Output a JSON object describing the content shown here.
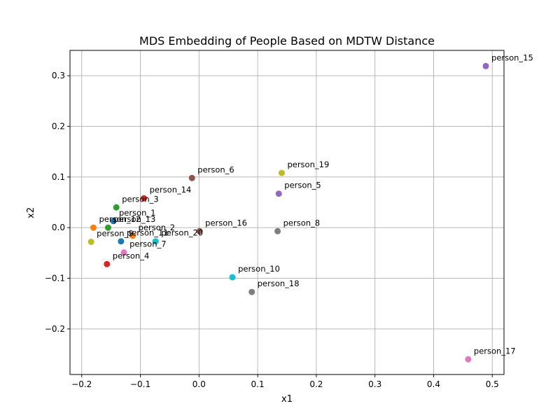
{
  "chart_data": {
    "type": "scatter",
    "title": "MDS Embedding of People Based on MDTW Distance",
    "xlabel": "x1",
    "ylabel": "x2",
    "xlim": [
      -0.22,
      0.52
    ],
    "ylim": [
      -0.29,
      0.35
    ],
    "xticks": [
      -0.2,
      -0.1,
      0.0,
      0.1,
      0.2,
      0.3,
      0.4,
      0.5
    ],
    "xtick_labels": [
      "−0.2",
      "−0.1",
      "0.0",
      "0.1",
      "0.2",
      "0.3",
      "0.4",
      "0.5"
    ],
    "yticks": [
      -0.2,
      -0.1,
      0.0,
      0.1,
      0.2,
      0.3
    ],
    "ytick_labels": [
      "−0.2",
      "−0.1",
      "0.0",
      "0.1",
      "0.2",
      "0.3"
    ],
    "grid": true,
    "points": [
      {
        "label": "person_1",
        "x": -0.146,
        "y": 0.013,
        "color": "#1f77b4"
      },
      {
        "label": "person_2",
        "x": -0.113,
        "y": -0.016,
        "color": "#ff7f0e"
      },
      {
        "label": "person_3",
        "x": -0.141,
        "y": 0.04,
        "color": "#2ca02c"
      },
      {
        "label": "person_4",
        "x": -0.157,
        "y": -0.072,
        "color": "#d62728"
      },
      {
        "label": "person_5",
        "x": 0.136,
        "y": 0.067,
        "color": "#9467bd"
      },
      {
        "label": "person_6",
        "x": -0.012,
        "y": 0.098,
        "color": "#8c564b"
      },
      {
        "label": "person_7",
        "x": -0.128,
        "y": -0.049,
        "color": "#e377c2"
      },
      {
        "label": "person_8",
        "x": 0.134,
        "y": -0.007,
        "color": "#7f7f7f"
      },
      {
        "label": "person_9",
        "x": -0.184,
        "y": -0.028,
        "color": "#bcbd22"
      },
      {
        "label": "person_10",
        "x": 0.057,
        "y": -0.098,
        "color": "#17becf"
      },
      {
        "label": "person_11",
        "x": -0.133,
        "y": -0.027,
        "color": "#1f77b4"
      },
      {
        "label": "person_12",
        "x": -0.18,
        "y": 0.0,
        "color": "#ff7f0e"
      },
      {
        "label": "person_13",
        "x": -0.155,
        "y": 0.0,
        "color": "#2ca02c"
      },
      {
        "label": "person_14",
        "x": -0.094,
        "y": 0.058,
        "color": "#d62728"
      },
      {
        "label": "person_15",
        "x": 0.489,
        "y": 0.319,
        "color": "#9467bd"
      },
      {
        "label": "person_16",
        "x": 0.001,
        "y": -0.007,
        "color": "#8c564b"
      },
      {
        "label": "person_17",
        "x": 0.459,
        "y": -0.26,
        "color": "#e377c2"
      },
      {
        "label": "person_18",
        "x": 0.09,
        "y": -0.127,
        "color": "#7f7f7f"
      },
      {
        "label": "person_19",
        "x": 0.141,
        "y": 0.108,
        "color": "#bcbd22"
      },
      {
        "label": "person_20",
        "x": -0.074,
        "y": -0.027,
        "color": "#17becf"
      }
    ]
  }
}
